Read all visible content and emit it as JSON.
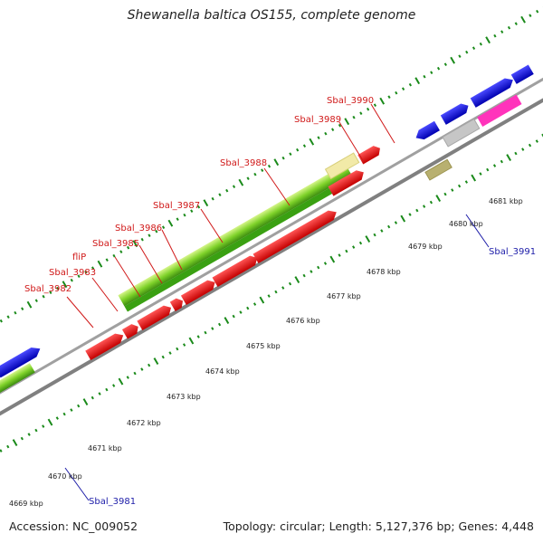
{
  "title": "Shewanella baltica OS155, complete genome",
  "footer": {
    "accession": "Accession: NC_009052",
    "summary": "Topology: circular; Length: 5,127,376 bp; Genes: 4,448"
  },
  "kbp_labels": [
    "4669 kbp",
    "4670 kbp",
    "4671 kbp",
    "4672 kbp",
    "4673 kbp",
    "4674 kbp",
    "4675 kbp",
    "4676 kbp",
    "4677 kbp",
    "4678 kbp",
    "4679 kbp",
    "4680 kbp",
    "4681 kbp"
  ],
  "gene_labels_red": [
    "Sbal_3982",
    "Sbal_3983",
    "fliP",
    "Sbal_3985",
    "Sbal_3986",
    "Sbal_3987",
    "Sbal_3988",
    "Sbal_3989",
    "Sbal_3990"
  ],
  "gene_labels_blue": [
    "Sbal_3991",
    "Sbal_3981"
  ],
  "colors": {
    "forward_strand": "#0a0ae0",
    "reverse_strand": "#ee0000",
    "hit_green": "#6ccc1a",
    "hit_yellow": "#f2eaa8",
    "hit_olive": "#b8b070",
    "hit_magenta": "#ff33bb",
    "hit_grey": "#c0c0c0",
    "backbone": "#909090",
    "ticks": "#1a8a1a"
  }
}
